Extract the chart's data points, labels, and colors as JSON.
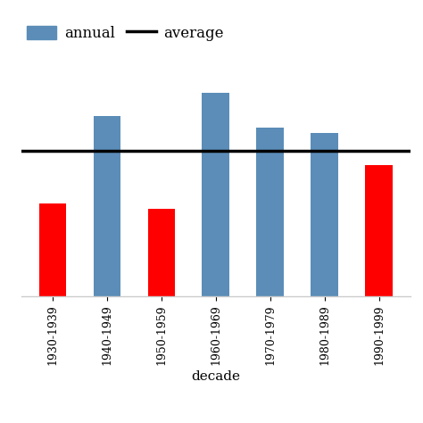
{
  "categories": [
    "1930-1939",
    "1940-1949",
    "1950-1959",
    "1960-1969",
    "1970-1979",
    "1980-1989",
    "1990-1999"
  ],
  "values": [
    32,
    62,
    30,
    70,
    58,
    56,
    45
  ],
  "colors": [
    "#ff0000",
    "#5b8db8",
    "#ff0000",
    "#5b8db8",
    "#5b8db8",
    "#5b8db8",
    "#ff0000"
  ],
  "average_line": 50,
  "xlabel": "decade",
  "bar_color_blue": "#5b8db8",
  "bar_color_red": "#ff0000",
  "average_color": "#000000",
  "ylim": [
    0,
    80
  ],
  "figsize": [
    4.74,
    4.74
  ],
  "dpi": 100,
  "legend_fontsize": 12,
  "xlabel_fontsize": 11,
  "tick_fontsize": 9,
  "bar_width": 0.5,
  "average_linewidth": 2.5,
  "spine_bottom_color": "#cccccc"
}
